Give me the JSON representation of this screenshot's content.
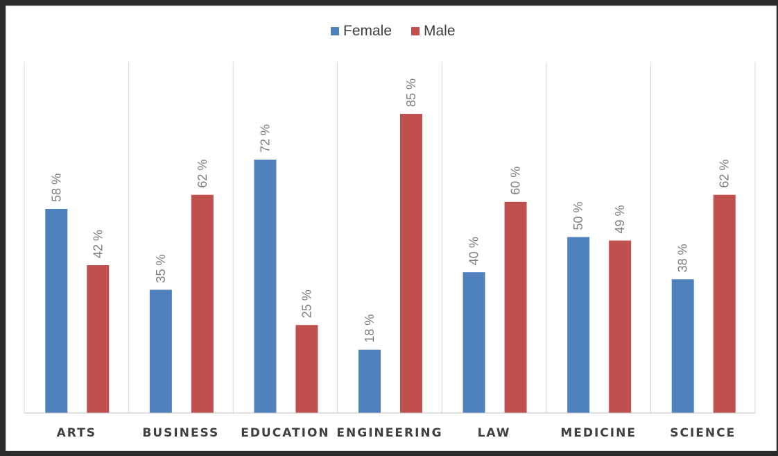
{
  "chart_data": {
    "type": "bar",
    "title": "",
    "xlabel": "",
    "ylabel": "",
    "categories": [
      "ARTS",
      "BUSINESS",
      "EDUCATION",
      "ENGINEERING",
      "LAW",
      "MEDICINE",
      "SCIENCE"
    ],
    "series": [
      {
        "name": "Female",
        "color": "#4f81bd",
        "values": [
          58,
          35,
          72,
          18,
          40,
          50,
          38
        ],
        "labels": [
          "58 %",
          "35 %",
          "72 %",
          "18 %",
          "40 %",
          "50 %",
          "38 %"
        ]
      },
      {
        "name": "Male",
        "color": "#c0504d",
        "values": [
          42,
          62,
          25,
          85,
          60,
          49,
          62
        ],
        "labels": [
          "42 %",
          "62 %",
          "25 %",
          "85 %",
          "60 %",
          "49 %",
          "62 %"
        ]
      }
    ],
    "ylim": [
      0,
      100
    ],
    "grid": "vertical category separators",
    "legend_position": "top-center",
    "data_labels": "rotated above bars"
  }
}
